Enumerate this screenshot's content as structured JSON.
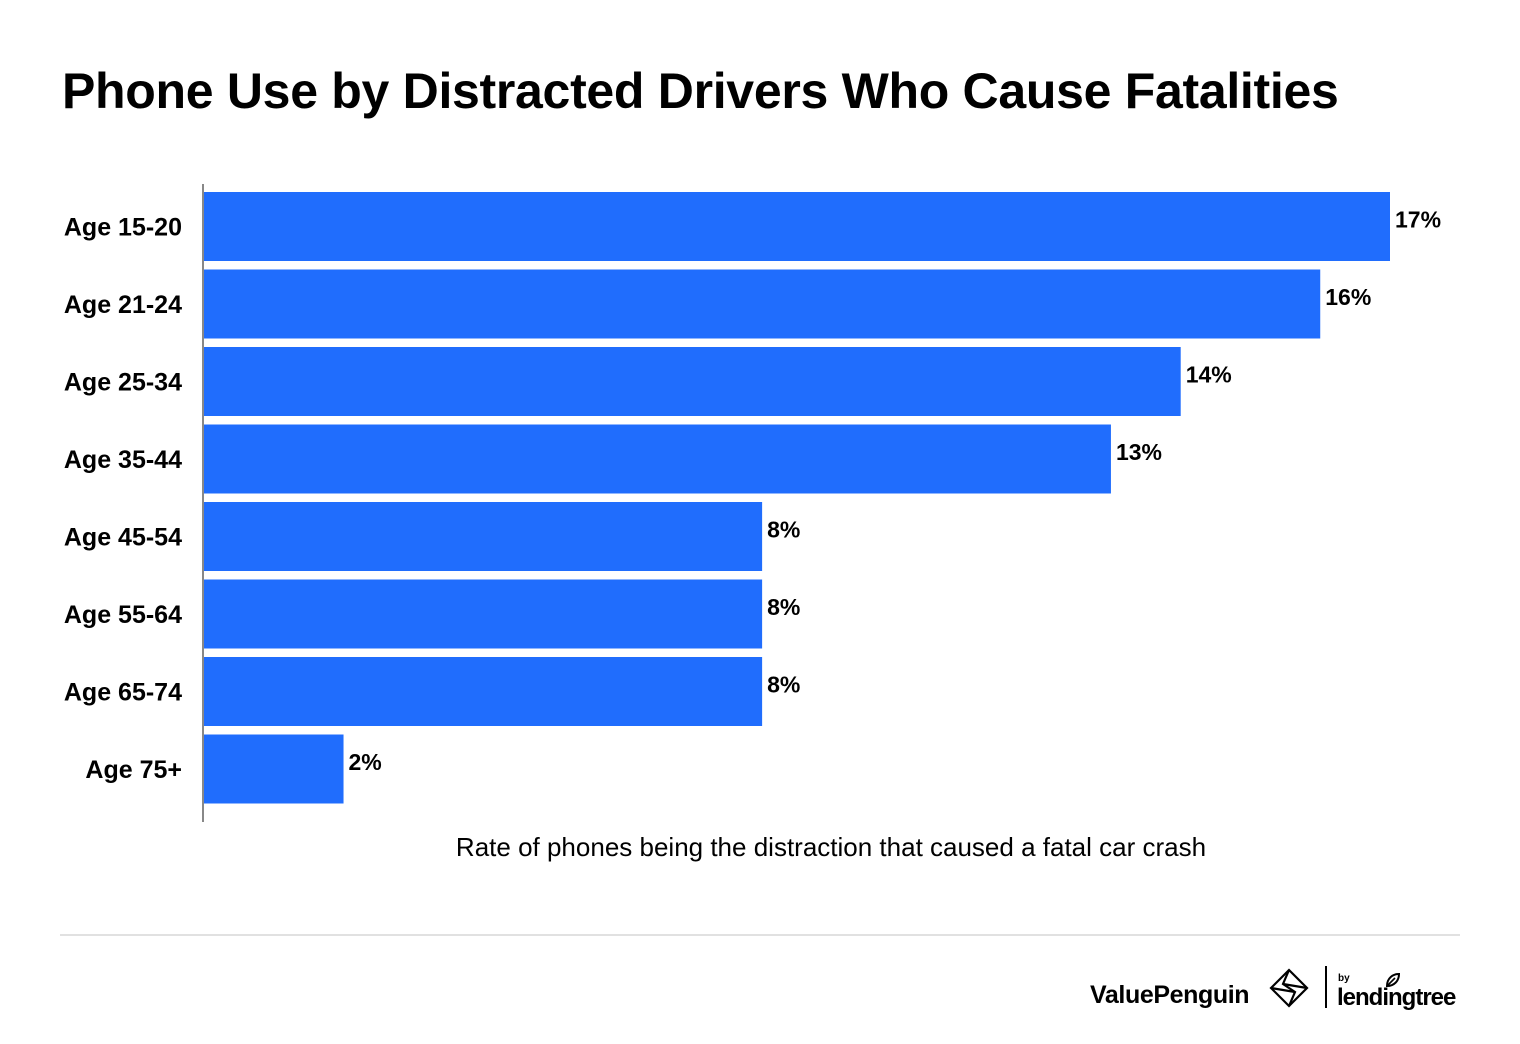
{
  "chart_data": {
    "type": "bar",
    "orientation": "horizontal",
    "title": "Phone Use by Distracted Drivers Who Cause Fatalities",
    "xlabel": "Rate of phones being the distraction that caused a fatal car crash",
    "ylabel": "",
    "categories": [
      "Age 15-20",
      "Age 21-24",
      "Age 25-34",
      "Age 35-44",
      "Age 45-54",
      "Age 55-64",
      "Age 65-74",
      "Age 75+"
    ],
    "values": [
      17,
      16,
      14,
      13,
      8,
      8,
      8,
      2
    ],
    "data_labels": [
      "17%",
      "16%",
      "14%",
      "13%",
      "8%",
      "8%",
      "8%",
      "2%"
    ],
    "unit": "%",
    "xlim": [
      0,
      17
    ],
    "grid": false,
    "legend": "none",
    "bar_color": "#206DFD"
  },
  "footer": {
    "brand": "ValuePenguin",
    "by": "by",
    "partner": "lendingtree"
  },
  "colors": {
    "bar": "#206DFD",
    "text": "#000000",
    "axis": "#888888",
    "divider": "#e1e1e1"
  },
  "icons": {
    "brand_icon": "valuepenguin-diamond-icon",
    "partner_icon": "leaf-icon"
  }
}
